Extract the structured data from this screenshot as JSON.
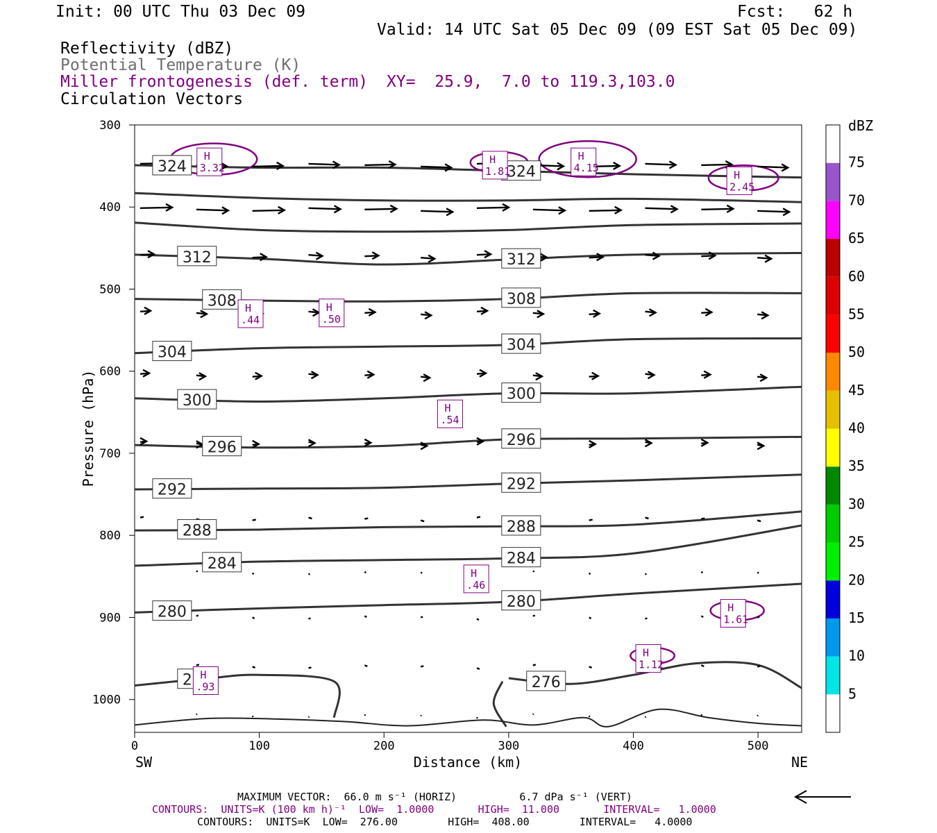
{
  "header": {
    "init": "Init: 00 UTC Thu 03 Dec 09",
    "fcst": "Fcst:   62 h",
    "valid": "Valid: 14 UTC Sat 05 Dec 09 (09 EST Sat 05 Dec 09)",
    "field1": "Reflectivity (dBZ)",
    "field2": "Potential Temperature (K)",
    "field3": "Miller frontogenesis (def. term)",
    "xy": "XY=  25.9,  7.0 to 119.3,103.0",
    "field4": "Circulation Vectors"
  },
  "colors": {
    "theta": "#333333",
    "fronto": "#800080",
    "vectors": "#000000",
    "field2_text": "#6e6e6e"
  },
  "chart_data": {
    "type": "cross-section",
    "xlabel": "Distance (km)",
    "ylabel": "Pressure (hPa)",
    "xlim": [
      0,
      535
    ],
    "ylim": [
      1040,
      300
    ],
    "x_ticks": [
      "0",
      "100",
      "200",
      "300",
      "400",
      "500"
    ],
    "y_ticks": [
      "300",
      "400",
      "500",
      "600",
      "700",
      "800",
      "900",
      "1000"
    ],
    "x_left_label": "SW",
    "x_right_label": "NE",
    "colorbar": {
      "title": "dBZ",
      "levels": [
        "5",
        "10",
        "15",
        "20",
        "25",
        "30",
        "35",
        "40",
        "45",
        "50",
        "55",
        "60",
        "65",
        "70",
        "75"
      ],
      "colors": [
        "#ffffff",
        "#00e5e5",
        "#0099ee",
        "#0000dd",
        "#00ee00",
        "#00cc00",
        "#008800",
        "#ffff00",
        "#e6c000",
        "#ff8800",
        "#ff0000",
        "#dd0000",
        "#bb0000",
        "#ff00ff",
        "#9955cc",
        "#ffffff"
      ]
    },
    "theta_contours": [
      {
        "label": "324",
        "pts": [
          [
            0,
            349
          ],
          [
            100,
            352
          ],
          [
            200,
            352
          ],
          [
            300,
            356
          ],
          [
            400,
            360
          ],
          [
            535,
            364
          ]
        ]
      },
      {
        "label": "",
        "pts": [
          [
            0,
            383
          ],
          [
            100,
            389
          ],
          [
            200,
            392
          ],
          [
            300,
            392
          ],
          [
            400,
            390
          ],
          [
            535,
            394
          ]
        ]
      },
      {
        "label": "",
        "pts": [
          [
            0,
            419
          ],
          [
            100,
            428
          ],
          [
            200,
            430
          ],
          [
            300,
            428
          ],
          [
            400,
            422
          ],
          [
            535,
            420
          ]
        ]
      },
      {
        "label": "312",
        "pts": [
          [
            0,
            458
          ],
          [
            100,
            463
          ],
          [
            200,
            470
          ],
          [
            300,
            464
          ],
          [
            400,
            458
          ],
          [
            535,
            456
          ]
        ]
      },
      {
        "label": "308",
        "pts": [
          [
            0,
            512
          ],
          [
            100,
            514
          ],
          [
            200,
            515
          ],
          [
            300,
            512
          ],
          [
            400,
            505
          ],
          [
            535,
            505
          ]
        ]
      },
      {
        "label": "304",
        "pts": [
          [
            0,
            578
          ],
          [
            100,
            572
          ],
          [
            200,
            570
          ],
          [
            300,
            568
          ],
          [
            400,
            561
          ],
          [
            535,
            560
          ]
        ]
      },
      {
        "label": "300",
        "pts": [
          [
            0,
            633
          ],
          [
            100,
            637
          ],
          [
            200,
            633
          ],
          [
            300,
            627
          ],
          [
            400,
            627
          ],
          [
            535,
            619
          ]
        ]
      },
      {
        "label": "296",
        "pts": [
          [
            0,
            690
          ],
          [
            100,
            693
          ],
          [
            200,
            691
          ],
          [
            300,
            683
          ],
          [
            400,
            682
          ],
          [
            535,
            680
          ]
        ]
      },
      {
        "label": "292",
        "pts": [
          [
            0,
            744
          ],
          [
            100,
            743
          ],
          [
            200,
            742
          ],
          [
            300,
            737
          ],
          [
            400,
            733
          ],
          [
            535,
            726
          ]
        ]
      },
      {
        "label": "288",
        "pts": [
          [
            0,
            794
          ],
          [
            100,
            793
          ],
          [
            200,
            790
          ],
          [
            300,
            789
          ],
          [
            400,
            787
          ],
          [
            535,
            771
          ]
        ]
      },
      {
        "label": "284",
        "pts": [
          [
            0,
            837
          ],
          [
            100,
            832
          ],
          [
            200,
            830
          ],
          [
            300,
            828
          ],
          [
            400,
            822
          ],
          [
            535,
            788
          ]
        ]
      },
      {
        "label": "280",
        "pts": [
          [
            0,
            894
          ],
          [
            100,
            889
          ],
          [
            200,
            885
          ],
          [
            300,
            881
          ],
          [
            400,
            871
          ],
          [
            535,
            859
          ]
        ]
      },
      {
        "label": "276",
        "pts": [
          [
            0,
            983
          ],
          [
            60,
            974
          ],
          [
            100,
            970
          ],
          [
            160,
            978
          ],
          [
            160,
            1022
          ]
        ]
      },
      {
        "label": "276",
        "pts": [
          [
            300,
            974
          ],
          [
            350,
            981
          ],
          [
            400,
            970
          ],
          [
            450,
            956
          ],
          [
            500,
            958
          ],
          [
            535,
            986
          ]
        ]
      },
      {
        "label": "",
        "pts": [
          [
            295,
            978
          ],
          [
            288,
            1005
          ],
          [
            298,
            1033
          ]
        ]
      }
    ],
    "surface_pressure_line": [
      [
        0,
        1031
      ],
      [
        60,
        1023
      ],
      [
        120,
        1024
      ],
      [
        170,
        1027
      ],
      [
        220,
        1032
      ],
      [
        280,
        1025
      ],
      [
        320,
        1031
      ],
      [
        360,
        1022
      ],
      [
        380,
        1033
      ],
      [
        420,
        1012
      ],
      [
        460,
        1022
      ],
      [
        500,
        1029
      ],
      [
        535,
        1032
      ]
    ],
    "frontogenesis_maxima": [
      {
        "label": "3.32",
        "x": 60,
        "p": 345
      },
      {
        "label": "1.81",
        "x": 289,
        "p": 349
      },
      {
        "label": "4.15",
        "x": 360,
        "p": 345
      },
      {
        "label": "2.45",
        "x": 485,
        "p": 368
      },
      {
        "label": ".44",
        "x": 93,
        "p": 530
      },
      {
        "label": ".50",
        "x": 158,
        "p": 529
      },
      {
        "label": ".54",
        "x": 253,
        "p": 652
      },
      {
        "label": ".46",
        "x": 274,
        "p": 853
      },
      {
        "label": "1.61",
        "x": 480,
        "p": 895
      },
      {
        "label": "1.12",
        "x": 412,
        "p": 950
      },
      {
        "label": ".93",
        "x": 57,
        "p": 977
      }
    ],
    "vectors": [
      {
        "p": 349,
        "u": 44,
        "row": [
          0,
          45,
          90,
          135,
          180,
          225,
          270,
          315,
          360,
          405,
          450,
          495,
          535
        ]
      },
      {
        "p": 403,
        "u": 46,
        "row": [
          0,
          45,
          90,
          135,
          180,
          225,
          270,
          315,
          360,
          405,
          450,
          495
        ]
      },
      {
        "p": 460,
        "u": 20,
        "row": [
          0,
          45,
          90,
          135,
          180,
          225,
          270,
          315,
          360,
          405,
          450,
          495
        ]
      },
      {
        "p": 529,
        "u": 15,
        "row": [
          0,
          45,
          90,
          135,
          180,
          225,
          270,
          315,
          360,
          405,
          450,
          495
        ]
      },
      {
        "p": 605,
        "u": 13,
        "row": [
          0,
          45,
          90,
          135,
          180,
          225,
          270,
          315,
          360,
          405,
          450,
          495
        ]
      },
      {
        "p": 688,
        "u": 9,
        "row": [
          0,
          45,
          90,
          135,
          180,
          225,
          270,
          315,
          360,
          405,
          450,
          495
        ]
      },
      {
        "p": 780,
        "u": 5,
        "row": [
          0,
          45,
          90,
          135,
          180,
          225,
          270,
          315,
          360,
          405,
          450,
          495
        ]
      },
      {
        "p": 846,
        "u": 2,
        "row": [
          45,
          90,
          135,
          180,
          225,
          270,
          315,
          360,
          405,
          450,
          495
        ]
      },
      {
        "p": 900,
        "u": 3,
        "row": [
          45,
          90,
          135,
          180,
          225,
          270,
          315,
          360,
          405,
          450,
          495
        ]
      },
      {
        "p": 960,
        "u": 4,
        "row": [
          45,
          90,
          135,
          180,
          225,
          270,
          315,
          360,
          405,
          450,
          495
        ]
      },
      {
        "p": 1020,
        "u": 1,
        "row": [
          45,
          90,
          135,
          180,
          225,
          270,
          315,
          360,
          405,
          450,
          495
        ]
      }
    ]
  },
  "footer": {
    "max_vector": "MAXIMUM VECTOR:  66.0 m s⁻¹ (HORIZ)          6.7 dPa s⁻¹ (VERT)",
    "contours1": "CONTOURS:  UNITS=K (100 km h)⁻¹  LOW=  1.0000       HIGH=  11.000       INTERVAL=   1.0000",
    "contours2": "CONTOURS:  UNITS=K  LOW=  276.00        HIGH=  408.00        INTERVAL=   4.0000"
  }
}
